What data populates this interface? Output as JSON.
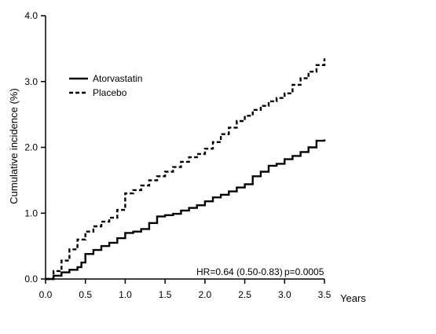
{
  "chart_data": {
    "type": "line",
    "title": "",
    "xlabel": "Years",
    "ylabel": "Cumulative incidence (%)",
    "xlim": [
      0,
      3.5
    ],
    "ylim": [
      0,
      4.0
    ],
    "x_ticks": [
      "0.0",
      "0.5",
      "1.0",
      "1.5",
      "2.0",
      "2.5",
      "3.0",
      "3.5"
    ],
    "y_ticks": [
      "0.0",
      "1.0",
      "2.0",
      "3.0",
      "4.0"
    ],
    "grid": false,
    "legend_position": "top-left",
    "annotations": {
      "hr": "HR=0.64 (0.50-0.83)",
      "p": "p=0.0005"
    },
    "series": [
      {
        "name": "Atorvastatin",
        "line_style": "solid",
        "color": "#000000",
        "x": [
          0.0,
          0.1,
          0.2,
          0.3,
          0.4,
          0.45,
          0.5,
          0.6,
          0.7,
          0.8,
          0.9,
          1.0,
          1.1,
          1.2,
          1.3,
          1.4,
          1.5,
          1.6,
          1.7,
          1.8,
          1.9,
          2.0,
          2.1,
          2.2,
          2.3,
          2.4,
          2.5,
          2.6,
          2.7,
          2.8,
          2.9,
          3.0,
          3.1,
          3.2,
          3.3,
          3.4,
          3.5
        ],
        "y": [
          0.0,
          0.05,
          0.1,
          0.14,
          0.18,
          0.25,
          0.38,
          0.44,
          0.5,
          0.55,
          0.62,
          0.7,
          0.72,
          0.76,
          0.85,
          0.95,
          0.97,
          0.99,
          1.04,
          1.08,
          1.12,
          1.18,
          1.24,
          1.28,
          1.33,
          1.39,
          1.44,
          1.56,
          1.63,
          1.72,
          1.75,
          1.82,
          1.87,
          1.93,
          2.0,
          2.1,
          2.12
        ]
      },
      {
        "name": "Placebo",
        "line_style": "dashed",
        "color": "#000000",
        "x": [
          0.0,
          0.1,
          0.2,
          0.3,
          0.4,
          0.5,
          0.6,
          0.7,
          0.8,
          0.9,
          1.0,
          1.1,
          1.2,
          1.3,
          1.4,
          1.5,
          1.6,
          1.7,
          1.8,
          1.9,
          2.0,
          2.1,
          2.2,
          2.3,
          2.4,
          2.5,
          2.6,
          2.7,
          2.8,
          2.9,
          3.0,
          3.1,
          3.2,
          3.3,
          3.4,
          3.5
        ],
        "y": [
          0.0,
          0.12,
          0.28,
          0.45,
          0.6,
          0.72,
          0.8,
          0.87,
          0.93,
          1.05,
          1.3,
          1.35,
          1.42,
          1.5,
          1.56,
          1.63,
          1.7,
          1.78,
          1.85,
          1.9,
          1.98,
          2.08,
          2.2,
          2.3,
          2.4,
          2.48,
          2.57,
          2.63,
          2.7,
          2.75,
          2.82,
          2.95,
          3.05,
          3.15,
          3.25,
          3.35
        ]
      }
    ]
  }
}
